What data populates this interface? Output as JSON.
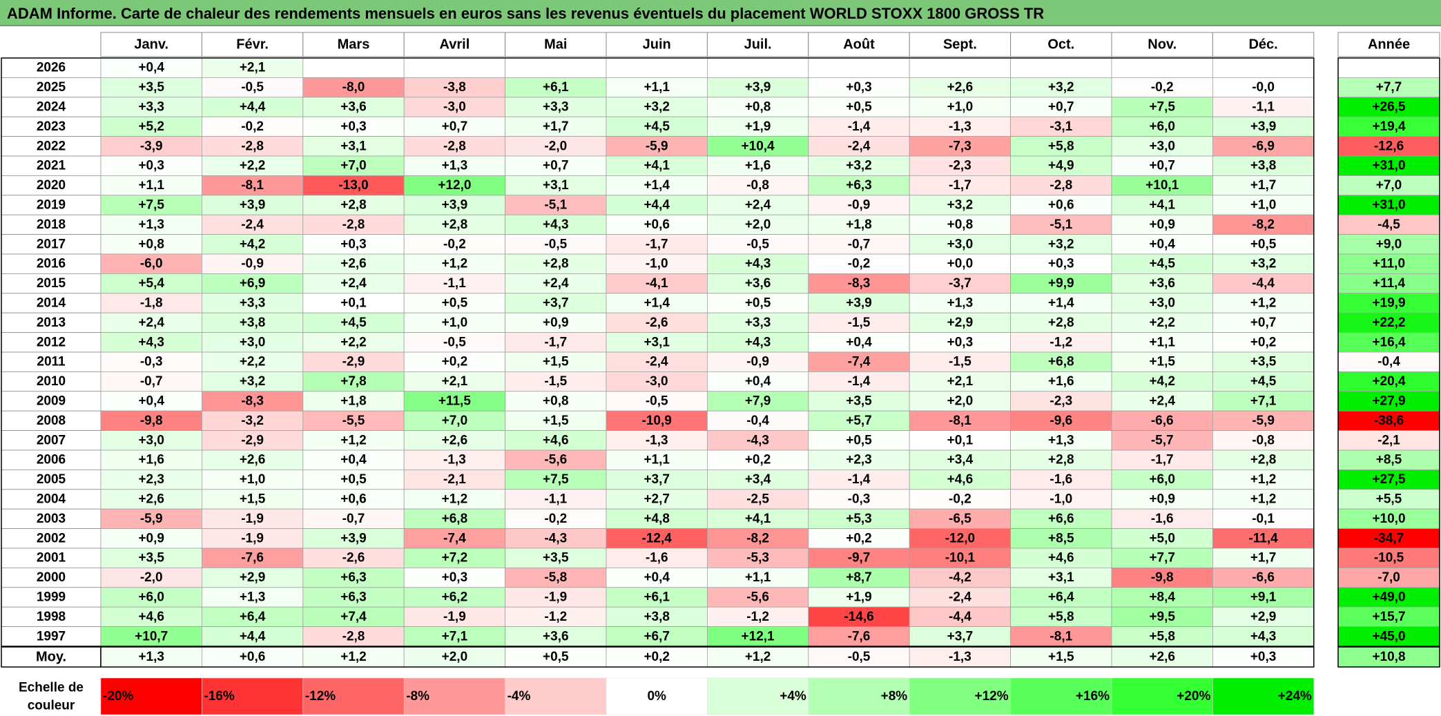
{
  "title": "ADAM Informe. Carte de chaleur des rendements mensuels en euros sans les revenus éventuels du placement WORLD STOXX 1800 GROSS TR",
  "chart_data": {
    "type": "heatmap",
    "months": [
      "Janv.",
      "Févr.",
      "Mars",
      "Avril",
      "Mai",
      "Juin",
      "Juil.",
      "Août",
      "Sept.",
      "Oct.",
      "Nov.",
      "Déc."
    ],
    "year_header": "Année",
    "rows": [
      {
        "year": "2026",
        "values": [
          "+0,4",
          "+2,1",
          "",
          "",
          "",
          "",
          "",
          "",
          "",
          "",
          "",
          ""
        ],
        "annual": ""
      },
      {
        "year": "2025",
        "values": [
          "+3,5",
          "-0,5",
          "-8,0",
          "-3,8",
          "+6,1",
          "+1,1",
          "+3,9",
          "+0,3",
          "+2,6",
          "+3,2",
          "-0,2",
          "-0,0"
        ],
        "annual": "+7,7"
      },
      {
        "year": "2024",
        "values": [
          "+3,3",
          "+4,4",
          "+3,6",
          "-3,0",
          "+3,3",
          "+3,2",
          "+0,8",
          "+0,5",
          "+1,0",
          "+0,7",
          "+7,5",
          "-1,1"
        ],
        "annual": "+26,5"
      },
      {
        "year": "2023",
        "values": [
          "+5,2",
          "-0,2",
          "+0,3",
          "+0,7",
          "+1,7",
          "+4,5",
          "+1,9",
          "-1,4",
          "-1,3",
          "-3,1",
          "+6,0",
          "+3,9"
        ],
        "annual": "+19,4"
      },
      {
        "year": "2022",
        "values": [
          "-3,9",
          "-2,8",
          "+3,1",
          "-2,8",
          "-2,0",
          "-5,9",
          "+10,4",
          "-2,4",
          "-7,3",
          "+5,8",
          "+3,0",
          "-6,9"
        ],
        "annual": "-12,6"
      },
      {
        "year": "2021",
        "values": [
          "+0,3",
          "+2,2",
          "+7,0",
          "+1,3",
          "+0,7",
          "+4,1",
          "+1,6",
          "+3,2",
          "-2,3",
          "+4,9",
          "+0,7",
          "+3,8"
        ],
        "annual": "+31,0"
      },
      {
        "year": "2020",
        "values": [
          "+1,1",
          "-8,1",
          "-13,0",
          "+12,0",
          "+3,1",
          "+1,4",
          "-0,8",
          "+6,3",
          "-1,7",
          "-2,8",
          "+10,1",
          "+1,7"
        ],
        "annual": "+7,0"
      },
      {
        "year": "2019",
        "values": [
          "+7,5",
          "+3,9",
          "+2,8",
          "+3,9",
          "-5,1",
          "+4,4",
          "+2,4",
          "-0,9",
          "+3,2",
          "+0,6",
          "+4,1",
          "+1,0"
        ],
        "annual": "+31,0"
      },
      {
        "year": "2018",
        "values": [
          "+1,3",
          "-2,4",
          "-2,8",
          "+2,8",
          "+4,3",
          "+0,6",
          "+2,0",
          "+1,8",
          "+0,8",
          "-5,1",
          "+0,9",
          "-8,2"
        ],
        "annual": "-4,5"
      },
      {
        "year": "2017",
        "values": [
          "+0,8",
          "+4,2",
          "+0,3",
          "-0,2",
          "-0,5",
          "-1,7",
          "-0,5",
          "-0,7",
          "+3,0",
          "+3,2",
          "+0,4",
          "+0,5"
        ],
        "annual": "+9,0"
      },
      {
        "year": "2016",
        "values": [
          "-6,0",
          "-0,9",
          "+2,6",
          "+1,2",
          "+2,8",
          "-1,0",
          "+4,3",
          "-0,2",
          "+0,0",
          "+0,3",
          "+4,5",
          "+3,2"
        ],
        "annual": "+11,0"
      },
      {
        "year": "2015",
        "values": [
          "+5,4",
          "+6,9",
          "+2,4",
          "-1,1",
          "+2,4",
          "-4,1",
          "+3,6",
          "-8,3",
          "-3,7",
          "+9,9",
          "+3,6",
          "-4,4"
        ],
        "annual": "+11,4"
      },
      {
        "year": "2014",
        "values": [
          "-1,8",
          "+3,3",
          "+0,1",
          "+0,5",
          "+3,7",
          "+1,4",
          "+0,5",
          "+3,9",
          "+1,3",
          "+1,4",
          "+3,0",
          "+1,2"
        ],
        "annual": "+19,9"
      },
      {
        "year": "2013",
        "values": [
          "+2,4",
          "+3,8",
          "+4,5",
          "+1,0",
          "+0,9",
          "-2,6",
          "+3,3",
          "-1,5",
          "+2,9",
          "+2,8",
          "+2,2",
          "+0,7"
        ],
        "annual": "+22,2"
      },
      {
        "year": "2012",
        "values": [
          "+4,3",
          "+3,0",
          "+2,2",
          "-0,5",
          "-1,7",
          "+3,1",
          "+4,3",
          "+0,4",
          "+0,3",
          "-1,2",
          "+1,1",
          "+0,2"
        ],
        "annual": "+16,4"
      },
      {
        "year": "2011",
        "values": [
          "-0,3",
          "+2,2",
          "-2,9",
          "+0,2",
          "+1,5",
          "-2,4",
          "-0,9",
          "-7,4",
          "-1,5",
          "+6,8",
          "+1,5",
          "+3,5"
        ],
        "annual": "-0,4"
      },
      {
        "year": "2010",
        "values": [
          "-0,7",
          "+3,2",
          "+7,8",
          "+2,1",
          "-1,5",
          "-3,0",
          "+0,4",
          "-1,4",
          "+2,1",
          "+1,6",
          "+4,2",
          "+4,5"
        ],
        "annual": "+20,4"
      },
      {
        "year": "2009",
        "values": [
          "+0,4",
          "-8,3",
          "+1,8",
          "+11,5",
          "+0,8",
          "-0,5",
          "+7,9",
          "+3,5",
          "+2,0",
          "-2,3",
          "+2,4",
          "+7,1"
        ],
        "annual": "+27,9"
      },
      {
        "year": "2008",
        "values": [
          "-9,8",
          "-3,2",
          "-5,5",
          "+7,0",
          "+1,5",
          "-10,9",
          "-0,4",
          "+5,7",
          "-8,1",
          "-9,6",
          "-6,6",
          "-5,9"
        ],
        "annual": "-38,6"
      },
      {
        "year": "2007",
        "values": [
          "+3,0",
          "-2,9",
          "+1,2",
          "+2,6",
          "+4,6",
          "-1,3",
          "-4,3",
          "+0,5",
          "+0,1",
          "+1,3",
          "-5,7",
          "-0,8"
        ],
        "annual": "-2,1"
      },
      {
        "year": "2006",
        "values": [
          "+1,6",
          "+2,6",
          "+0,4",
          "-1,3",
          "-5,6",
          "+1,1",
          "+0,2",
          "+2,3",
          "+3,4",
          "+2,8",
          "-1,7",
          "+2,8"
        ],
        "annual": "+8,5"
      },
      {
        "year": "2005",
        "values": [
          "+2,3",
          "+1,0",
          "+0,5",
          "-2,1",
          "+7,5",
          "+3,7",
          "+3,4",
          "-1,4",
          "+4,6",
          "-1,6",
          "+6,0",
          "+1,2"
        ],
        "annual": "+27,5"
      },
      {
        "year": "2004",
        "values": [
          "+2,6",
          "+1,5",
          "+0,6",
          "+1,2",
          "-1,1",
          "+2,7",
          "-2,5",
          "-0,3",
          "-0,2",
          "-1,0",
          "+0,9",
          "+1,2"
        ],
        "annual": "+5,5"
      },
      {
        "year": "2003",
        "values": [
          "-5,9",
          "-1,9",
          "-0,7",
          "+6,8",
          "-0,2",
          "+4,8",
          "+4,1",
          "+5,3",
          "-6,5",
          "+6,6",
          "-1,6",
          "-0,1"
        ],
        "annual": "+10,0"
      },
      {
        "year": "2002",
        "values": [
          "+0,9",
          "-1,9",
          "+3,9",
          "-7,4",
          "-4,3",
          "-12,4",
          "-8,2",
          "+0,2",
          "-12,0",
          "+8,5",
          "+5,0",
          "-11,4"
        ],
        "annual": "-34,7"
      },
      {
        "year": "2001",
        "values": [
          "+3,5",
          "-7,6",
          "-2,6",
          "+7,2",
          "+3,5",
          "-1,6",
          "-5,3",
          "-9,7",
          "-10,1",
          "+4,6",
          "+7,7",
          "+1,7"
        ],
        "annual": "-10,5"
      },
      {
        "year": "2000",
        "values": [
          "-2,0",
          "+2,9",
          "+6,3",
          "+0,3",
          "-5,8",
          "+0,4",
          "+1,1",
          "+8,7",
          "-4,2",
          "+3,1",
          "-9,8",
          "-6,6"
        ],
        "annual": "-7,0"
      },
      {
        "year": "1999",
        "values": [
          "+6,0",
          "+1,3",
          "+6,3",
          "+6,2",
          "-1,9",
          "+6,1",
          "-5,6",
          "+1,9",
          "-2,4",
          "+6,4",
          "+8,4",
          "+9,1"
        ],
        "annual": "+49,0"
      },
      {
        "year": "1998",
        "values": [
          "+4,6",
          "+6,4",
          "+7,4",
          "-1,9",
          "-1,2",
          "+3,8",
          "-1,2",
          "-14,6",
          "-4,4",
          "+5,8",
          "+9,5",
          "+2,9"
        ],
        "annual": "+15,7"
      },
      {
        "year": "1997",
        "values": [
          "+10,7",
          "+4,4",
          "-2,8",
          "+7,1",
          "+3,6",
          "+6,7",
          "+12,1",
          "-7,6",
          "+3,7",
          "-8,1",
          "+5,8",
          "+4,3"
        ],
        "annual": "+45,0"
      }
    ],
    "average": {
      "label": "Moy.",
      "values": [
        "+1,3",
        "+0,6",
        "+1,2",
        "+2,0",
        "+0,5",
        "+0,2",
        "+1,2",
        "-0,5",
        "-1,3",
        "+1,5",
        "+2,6",
        "+0,3"
      ],
      "annual": "+10,8"
    },
    "scale": {
      "label_line1": "Echelle de",
      "label_line2": "couleur",
      "items": [
        {
          "label": "-20%",
          "value": -20,
          "color": "#ff0000"
        },
        {
          "label": "-16%",
          "value": -16,
          "color": "#ff3333"
        },
        {
          "label": "-12%",
          "value": -12,
          "color": "#ff6666"
        },
        {
          "label": "-8%",
          "value": -8,
          "color": "#ff9999"
        },
        {
          "label": "-4%",
          "value": -4,
          "color": "#ffcccc"
        },
        {
          "label": "0%",
          "value": 0,
          "color": "#ffffff"
        },
        {
          "label": "+4%",
          "value": 4,
          "color": "#d9ffd9"
        },
        {
          "label": "+8%",
          "value": 8,
          "color": "#b3ffb3"
        },
        {
          "label": "+12%",
          "value": 12,
          "color": "#80ff80"
        },
        {
          "label": "+16%",
          "value": 16,
          "color": "#59ff59"
        },
        {
          "label": "+20%",
          "value": 20,
          "color": "#33ff33"
        },
        {
          "label": "+24%",
          "value": 24,
          "color": "#00ee00"
        }
      ]
    }
  }
}
